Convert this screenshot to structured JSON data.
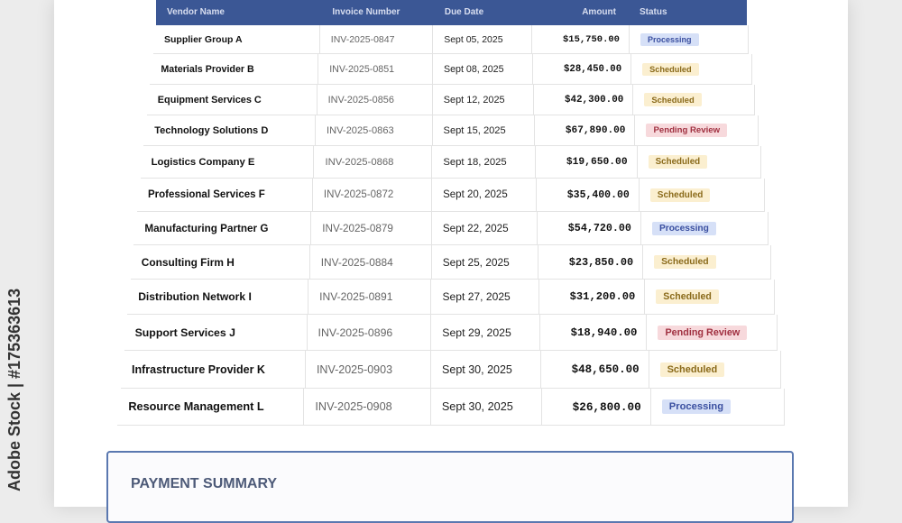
{
  "table": {
    "columns": [
      "Vendor Name",
      "Invoice Number",
      "Due Date",
      "Amount",
      "Status"
    ],
    "rows": [
      [
        "Supplier Group A",
        "INV-2025-0847",
        "Sept 05, 2025",
        "$15,750.00",
        "Processing"
      ],
      [
        "Materials Provider B",
        "INV-2025-0851",
        "Sept 08, 2025",
        "$28,450.00",
        "Scheduled"
      ],
      [
        "Equipment Services C",
        "INV-2025-0856",
        "Sept 12, 2025",
        "$42,300.00",
        "Scheduled"
      ],
      [
        "Technology Solutions D",
        "INV-2025-0863",
        "Sept 15, 2025",
        "$67,890.00",
        "Pending Review"
      ],
      [
        "Logistics Company E",
        "INV-2025-0868",
        "Sept 18, 2025",
        "$19,650.00",
        "Scheduled"
      ],
      [
        "Professional Services F",
        "INV-2025-0872",
        "Sept 20, 2025",
        "$35,400.00",
        "Scheduled"
      ],
      [
        "Manufacturing Partner G",
        "INV-2025-0879",
        "Sept 22, 2025",
        "$54,720.00",
        "Processing"
      ],
      [
        "Consulting Firm H",
        "INV-2025-0884",
        "Sept 25, 2025",
        "$23,850.00",
        "Scheduled"
      ],
      [
        "Distribution Network I",
        "INV-2025-0891",
        "Sept 27, 2025",
        "$31,200.00",
        "Scheduled"
      ],
      [
        "Support Services J",
        "INV-2025-0896",
        "Sept 29, 2025",
        "$18,940.00",
        "Pending Review"
      ],
      [
        "Infrastructure Provider K",
        "INV-2025-0903",
        "Sept 30, 2025",
        "$48,650.00",
        "Scheduled"
      ],
      [
        "Resource Management L",
        "INV-2025-0908",
        "Sept 30, 2025",
        "$26,800.00",
        "Processing"
      ]
    ]
  },
  "summary": {
    "title": "PAYMENT SUMMARY"
  },
  "watermark": "Adobe Stock | #175363613"
}
